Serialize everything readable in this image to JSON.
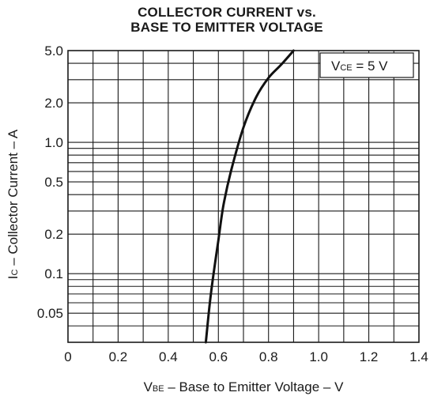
{
  "chart_data": {
    "type": "line",
    "title_line1": "COLLECTOR CURRENT  vs.",
    "title_line2": "BASE TO EMITTER VOLTAGE",
    "xlabel": {
      "sym": "V",
      "sub": "BE",
      "text": " – Base to Emitter Voltage – V"
    },
    "ylabel": {
      "sym": "I",
      "sub": "C",
      "text": " – Collector Current – A"
    },
    "legend": {
      "sym": "V",
      "sub": "CE",
      "text": " = 5 V",
      "placement": "top-right"
    },
    "x_ticks": [
      "0",
      "0.2",
      "0.4",
      "0.6",
      "0.8",
      "1.0",
      "1.2",
      "1.4"
    ],
    "x_tick_values": [
      0,
      0.2,
      0.4,
      0.6,
      0.8,
      1.0,
      1.2,
      1.4
    ],
    "y_ticks": [
      "5.0",
      "2.0",
      "1.0",
      "0.5",
      "0.2",
      "0.1",
      "0.05"
    ],
    "y_tick_values": [
      5.0,
      2.0,
      1.0,
      0.5,
      0.2,
      0.1,
      0.05
    ],
    "xlim": [
      0,
      1.4
    ],
    "ylim": [
      0.03,
      5.0
    ],
    "y_scale": "log",
    "grid": true,
    "series": [
      {
        "x": [
          0.55,
          0.57,
          0.6,
          0.62,
          0.65,
          0.7,
          0.75,
          0.8,
          0.85,
          0.9
        ],
        "y": [
          0.03,
          0.07,
          0.18,
          0.33,
          0.6,
          1.3,
          2.2,
          3.1,
          3.9,
          5.0
        ]
      }
    ]
  }
}
